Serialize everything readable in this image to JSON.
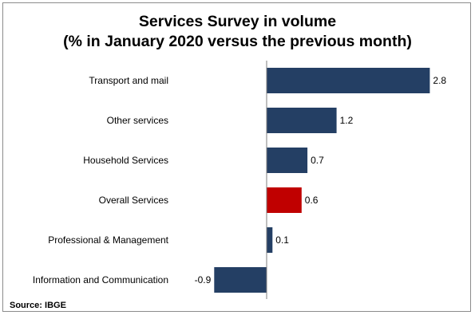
{
  "chart_data": {
    "type": "bar",
    "orientation": "horizontal",
    "title": "Services Survey in volume",
    "subtitle": "(% in January 2020 versus the previous month)",
    "categories": [
      "Transport and mail",
      "Other services",
      "Household Services",
      "Overall Services",
      "Professional & Management",
      "Information and Communication"
    ],
    "values": [
      2.8,
      1.2,
      0.7,
      0.6,
      0.1,
      -0.9
    ],
    "value_labels": [
      "2.8",
      "1.2",
      "0.7",
      "0.6",
      "0.1",
      "-0.9"
    ],
    "xlim": [
      -1.0,
      3.0
    ],
    "colors": [
      "#243F64",
      "#243F64",
      "#243F64",
      "#C00000",
      "#243F64",
      "#243F64"
    ],
    "grid": false,
    "legend": "none",
    "source": "Source: IBGE"
  }
}
